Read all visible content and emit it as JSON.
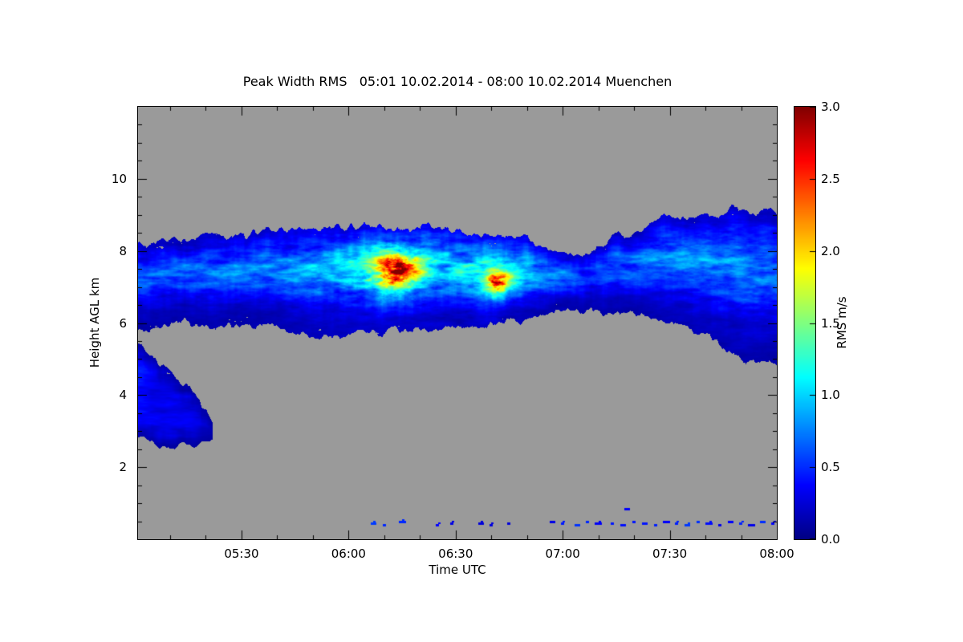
{
  "title": "Peak Width RMS   05:01 10.02.2014 - 08:00 10.02.2014 Muenchen",
  "chart_data": {
    "type": "heatmap",
    "title": "Peak Width RMS   05:01 10.02.2014 - 08:00 10.02.2014 Muenchen",
    "site": "Muenchen",
    "time_span_utc": {
      "start": "05:01 10.02.2014",
      "end": "08:00 10.02.2014"
    },
    "xlabel": "Time UTC",
    "ylabel": "Height AGL km",
    "x_axis": {
      "start_minutes": 0,
      "end_minutes": 179,
      "major_ticks": [
        {
          "label": "05:30",
          "minutes": 29
        },
        {
          "label": "06:00",
          "minutes": 59
        },
        {
          "label": "06:30",
          "minutes": 89
        },
        {
          "label": "07:00",
          "minutes": 119
        },
        {
          "label": "07:30",
          "minutes": 149
        },
        {
          "label": "08:00",
          "minutes": 179
        }
      ],
      "minor_step_minutes": 10
    },
    "y_axis": {
      "min_km": 0,
      "max_km": 12,
      "major_ticks": [
        {
          "label": "2",
          "km": 2
        },
        {
          "label": "4",
          "km": 4
        },
        {
          "label": "6",
          "km": 6
        },
        {
          "label": "8",
          "km": 8
        },
        {
          "label": "10",
          "km": 10
        }
      ],
      "minor_step_km": 0.5
    },
    "colorbar": {
      "label": "RMS m/s",
      "min": 0.0,
      "max": 3.0,
      "ticks": [
        {
          "label": "0.0",
          "value": 0.0
        },
        {
          "label": "0.5",
          "value": 0.5
        },
        {
          "label": "1.0",
          "value": 1.0
        },
        {
          "label": "1.5",
          "value": 1.5
        },
        {
          "label": "2.0",
          "value": 2.0
        },
        {
          "label": "2.5",
          "value": 2.5
        },
        {
          "label": "3.0",
          "value": 3.0
        }
      ],
      "stops": [
        {
          "v": 0.0,
          "c": "#000083"
        },
        {
          "v": 0.375,
          "c": "#0000ff"
        },
        {
          "v": 1.125,
          "c": "#00ffff"
        },
        {
          "v": 1.875,
          "c": "#ffff00"
        },
        {
          "v": 2.625,
          "c": "#ff0000"
        },
        {
          "v": 3.0,
          "c": "#800000"
        }
      ]
    },
    "no_data_color": "#9a9a9a",
    "cloud_band": {
      "description": "Elevated cloud layer between ~5-9 km AGL across whole period; RMS mostly 0.1-1.2 m/s, brightest 06:00-06:50",
      "samples_t_top_bottom_intensity": [
        [
          0,
          8.3,
          5.8,
          0.55
        ],
        [
          10,
          8.4,
          6.05,
          0.55
        ],
        [
          20,
          8.5,
          6.0,
          0.6
        ],
        [
          30,
          8.6,
          5.9,
          0.6
        ],
        [
          40,
          8.65,
          5.8,
          0.65
        ],
        [
          50,
          8.7,
          5.6,
          0.75
        ],
        [
          60,
          8.8,
          5.6,
          0.85
        ],
        [
          70,
          8.7,
          5.7,
          1.0
        ],
        [
          80,
          8.55,
          5.8,
          0.95
        ],
        [
          90,
          8.5,
          5.9,
          0.9
        ],
        [
          100,
          8.4,
          6.0,
          1.0
        ],
        [
          110,
          8.3,
          6.1,
          0.8
        ],
        [
          118,
          8.0,
          6.2,
          0.6
        ],
        [
          125,
          7.9,
          6.3,
          0.48
        ],
        [
          132,
          8.2,
          6.3,
          0.55
        ],
        [
          140,
          8.6,
          6.2,
          0.6
        ],
        [
          150,
          9.0,
          5.9,
          0.65
        ],
        [
          160,
          9.1,
          5.5,
          0.65
        ],
        [
          170,
          9.1,
          5.1,
          0.62
        ],
        [
          179,
          9.1,
          4.9,
          0.6
        ]
      ]
    },
    "low_level_cloud": {
      "description": "Low cloud blob 2.5-5.3 km at start, dissipating by ~05:22; RMS 0.1-0.5 m/s",
      "samples_t_top_bottom_intensity": [
        [
          0,
          5.3,
          2.8,
          0.4
        ],
        [
          5,
          5.0,
          2.6,
          0.38
        ],
        [
          10,
          4.6,
          2.5,
          0.36
        ],
        [
          15,
          4.15,
          2.55,
          0.32
        ],
        [
          19,
          3.6,
          2.65,
          0.3
        ],
        [
          21,
          3.1,
          2.75,
          0.28
        ]
      ]
    },
    "hot_spots": [
      {
        "t": 72,
        "h": 7.45,
        "v": 1.6,
        "rt": 7.0,
        "rh": 0.55
      },
      {
        "t": 73,
        "h": 7.4,
        "v": 1.1,
        "rt": 2.5,
        "rh": 0.25
      },
      {
        "t": 101,
        "h": 7.15,
        "v": 1.25,
        "rt": 4.0,
        "rh": 0.4
      },
      {
        "t": 100,
        "h": 7.1,
        "v": 0.8,
        "rt": 1.8,
        "rh": 0.2
      }
    ],
    "ground_echoes_t_h_w": [
      [
        66,
        0.45,
        1.5
      ],
      [
        69,
        0.4,
        1
      ],
      [
        74,
        0.5,
        2
      ],
      [
        84,
        0.4,
        1
      ],
      [
        88,
        0.45,
        1
      ],
      [
        96,
        0.45,
        1.5
      ],
      [
        99,
        0.4,
        1
      ],
      [
        104,
        0.45,
        1
      ],
      [
        116,
        0.5,
        1.5
      ],
      [
        119,
        0.45,
        1
      ],
      [
        123,
        0.4,
        1.5
      ],
      [
        126,
        0.5,
        1
      ],
      [
        129,
        0.45,
        2
      ],
      [
        133,
        0.45,
        1
      ],
      [
        136,
        0.4,
        1.5
      ],
      [
        137,
        0.85,
        1.5
      ],
      [
        139,
        0.5,
        1
      ],
      [
        142,
        0.45,
        1.5
      ],
      [
        145,
        0.4,
        1
      ],
      [
        148,
        0.5,
        2
      ],
      [
        151,
        0.45,
        1
      ],
      [
        154,
        0.4,
        1.5
      ],
      [
        157,
        0.5,
        1
      ],
      [
        160,
        0.45,
        2
      ],
      [
        163,
        0.4,
        1
      ],
      [
        166,
        0.5,
        1.5
      ],
      [
        169,
        0.45,
        1
      ],
      [
        172,
        0.4,
        2
      ],
      [
        175,
        0.5,
        1.5
      ],
      [
        178,
        0.45,
        1
      ]
    ],
    "noise_seed": 11
  }
}
